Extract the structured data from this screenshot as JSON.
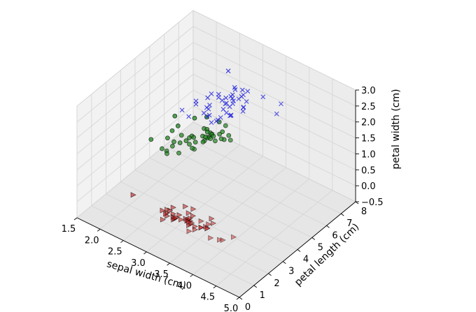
{
  "chart_data": {
    "type": "scatter3d",
    "title": "",
    "xlabel": "sepal width (cm)",
    "ylabel": "petal length (cm)",
    "zlabel": "petal width (cm)",
    "xlim": [
      1.5,
      5.0
    ],
    "ylim": [
      0,
      8
    ],
    "zlim": [
      -0.5,
      3.0
    ],
    "xticks": [
      "1.5",
      "2.0",
      "2.5",
      "3.0",
      "3.5",
      "4.0",
      "4.5",
      "5.0"
    ],
    "yticks": [
      "0",
      "1",
      "2",
      "3",
      "4",
      "5",
      "6",
      "7",
      "8"
    ],
    "zticks": [
      "−0.5",
      "0.0",
      "0.5",
      "1.0",
      "1.5",
      "2.0",
      "2.5",
      "3.0"
    ],
    "grid": true,
    "series": [
      {
        "marker": "triangle-right",
        "color": "#cc2222",
        "points": [
          [
            3.5,
            1.4,
            0.2
          ],
          [
            3.0,
            1.4,
            0.2
          ],
          [
            3.2,
            1.3,
            0.2
          ],
          [
            3.1,
            1.5,
            0.2
          ],
          [
            3.6,
            1.4,
            0.2
          ],
          [
            3.9,
            1.7,
            0.4
          ],
          [
            3.4,
            1.4,
            0.3
          ],
          [
            3.4,
            1.5,
            0.2
          ],
          [
            2.9,
            1.4,
            0.2
          ],
          [
            3.1,
            1.5,
            0.1
          ],
          [
            3.7,
            1.5,
            0.2
          ],
          [
            3.4,
            1.6,
            0.2
          ],
          [
            3.0,
            1.4,
            0.1
          ],
          [
            3.0,
            1.1,
            0.1
          ],
          [
            4.0,
            1.2,
            0.2
          ],
          [
            4.4,
            1.5,
            0.4
          ],
          [
            3.9,
            1.3,
            0.4
          ],
          [
            3.5,
            1.4,
            0.3
          ],
          [
            3.8,
            1.7,
            0.3
          ],
          [
            3.8,
            1.5,
            0.3
          ],
          [
            3.4,
            1.7,
            0.2
          ],
          [
            3.7,
            1.5,
            0.4
          ],
          [
            3.6,
            1.0,
            0.2
          ],
          [
            3.3,
            1.7,
            0.5
          ],
          [
            3.4,
            1.9,
            0.2
          ],
          [
            3.0,
            1.6,
            0.2
          ],
          [
            3.4,
            1.6,
            0.4
          ],
          [
            3.5,
            1.5,
            0.2
          ],
          [
            3.2,
            1.6,
            0.2
          ],
          [
            3.1,
            1.5,
            0.4
          ],
          [
            4.1,
            1.5,
            0.1
          ],
          [
            4.2,
            1.4,
            0.2
          ],
          [
            3.2,
            1.2,
            0.2
          ],
          [
            3.5,
            1.3,
            0.2
          ],
          [
            3.6,
            1.4,
            0.1
          ],
          [
            3.0,
            1.3,
            0.2
          ],
          [
            3.4,
            1.5,
            0.2
          ],
          [
            3.5,
            1.3,
            0.3
          ],
          [
            2.3,
            1.3,
            0.3
          ],
          [
            3.2,
            1.3,
            0.2
          ],
          [
            3.5,
            1.6,
            0.6
          ],
          [
            3.8,
            1.9,
            0.4
          ],
          [
            3.0,
            1.4,
            0.3
          ],
          [
            3.8,
            1.6,
            0.2
          ],
          [
            3.2,
            1.4,
            0.2
          ],
          [
            3.7,
            1.5,
            0.2
          ],
          [
            3.3,
            1.4,
            0.2
          ]
        ]
      },
      {
        "marker": "circle",
        "color": "#228822",
        "points": [
          [
            3.2,
            4.7,
            1.4
          ],
          [
            3.2,
            4.5,
            1.5
          ],
          [
            3.1,
            4.9,
            1.5
          ],
          [
            2.3,
            4.0,
            1.3
          ],
          [
            2.8,
            4.6,
            1.5
          ],
          [
            2.8,
            4.5,
            1.3
          ],
          [
            3.3,
            4.7,
            1.6
          ],
          [
            2.4,
            3.3,
            1.0
          ],
          [
            2.9,
            4.6,
            1.3
          ],
          [
            2.7,
            3.9,
            1.4
          ],
          [
            2.0,
            3.5,
            1.0
          ],
          [
            3.0,
            4.2,
            1.5
          ],
          [
            2.2,
            4.0,
            1.0
          ],
          [
            2.9,
            4.7,
            1.4
          ],
          [
            2.9,
            3.6,
            1.3
          ],
          [
            3.1,
            4.4,
            1.4
          ],
          [
            3.0,
            4.5,
            1.5
          ],
          [
            2.7,
            4.1,
            1.0
          ],
          [
            2.2,
            4.5,
            1.5
          ],
          [
            2.5,
            3.9,
            1.1
          ],
          [
            3.2,
            4.8,
            1.8
          ],
          [
            2.8,
            4.0,
            1.3
          ],
          [
            2.5,
            4.9,
            1.5
          ],
          [
            2.8,
            4.7,
            1.2
          ],
          [
            2.9,
            4.3,
            1.3
          ],
          [
            3.0,
            4.4,
            1.4
          ],
          [
            2.8,
            4.8,
            1.4
          ],
          [
            3.0,
            5.0,
            1.7
          ],
          [
            2.9,
            4.5,
            1.5
          ],
          [
            2.6,
            3.5,
            1.0
          ],
          [
            2.4,
            3.8,
            1.1
          ],
          [
            2.4,
            3.7,
            1.0
          ],
          [
            2.7,
            3.9,
            1.2
          ],
          [
            2.7,
            5.1,
            1.6
          ],
          [
            3.0,
            4.5,
            1.5
          ],
          [
            3.4,
            4.5,
            1.6
          ],
          [
            3.1,
            4.7,
            1.5
          ],
          [
            2.3,
            4.4,
            1.3
          ],
          [
            2.5,
            4.0,
            1.3
          ],
          [
            2.6,
            4.4,
            1.2
          ],
          [
            3.0,
            4.6,
            1.4
          ],
          [
            2.6,
            4.0,
            1.2
          ],
          [
            2.3,
            3.3,
            1.0
          ],
          [
            2.7,
            4.2,
            1.3
          ],
          [
            2.9,
            4.2,
            1.3
          ],
          [
            2.5,
            3.0,
            1.1
          ]
        ]
      },
      {
        "marker": "x",
        "color": "#2222dd",
        "points": [
          [
            3.3,
            6.0,
            2.5
          ],
          [
            2.7,
            5.1,
            1.9
          ],
          [
            3.0,
            5.9,
            2.1
          ],
          [
            2.9,
            5.6,
            1.8
          ],
          [
            3.0,
            5.8,
            2.2
          ],
          [
            3.0,
            6.6,
            2.1
          ],
          [
            2.5,
            4.5,
            1.7
          ],
          [
            2.9,
            6.3,
            1.8
          ],
          [
            2.5,
            5.8,
            1.8
          ],
          [
            3.6,
            6.1,
            2.5
          ],
          [
            3.2,
            5.1,
            2.0
          ],
          [
            2.7,
            5.3,
            1.9
          ],
          [
            3.0,
            5.5,
            2.1
          ],
          [
            2.5,
            5.0,
            2.0
          ],
          [
            2.8,
            5.1,
            2.4
          ],
          [
            3.2,
            5.3,
            2.3
          ],
          [
            3.0,
            5.5,
            1.8
          ],
          [
            3.8,
            6.7,
            2.2
          ],
          [
            2.6,
            6.9,
            2.3
          ],
          [
            2.2,
            5.0,
            1.5
          ],
          [
            3.2,
            5.7,
            2.3
          ],
          [
            2.8,
            4.9,
            2.0
          ],
          [
            2.8,
            6.7,
            2.0
          ],
          [
            2.7,
            4.9,
            1.8
          ],
          [
            3.3,
            5.7,
            2.1
          ],
          [
            3.2,
            6.0,
            1.8
          ],
          [
            2.8,
            4.8,
            1.8
          ],
          [
            3.0,
            4.9,
            1.8
          ],
          [
            2.8,
            5.6,
            2.1
          ],
          [
            3.0,
            5.8,
            1.6
          ],
          [
            2.8,
            6.1,
            1.9
          ],
          [
            3.8,
            6.4,
            2.0
          ],
          [
            2.8,
            5.6,
            2.2
          ],
          [
            2.8,
            5.1,
            1.5
          ],
          [
            2.6,
            5.6,
            1.4
          ],
          [
            3.0,
            6.1,
            2.3
          ],
          [
            3.4,
            5.6,
            2.4
          ],
          [
            3.1,
            5.5,
            1.8
          ],
          [
            3.0,
            4.8,
            1.8
          ],
          [
            3.1,
            5.4,
            2.1
          ],
          [
            3.1,
            5.6,
            2.4
          ],
          [
            3.1,
            5.1,
            2.3
          ],
          [
            3.2,
            5.9,
            2.3
          ],
          [
            3.3,
            5.7,
            2.5
          ],
          [
            3.0,
            5.2,
            2.3
          ],
          [
            2.5,
            5.0,
            1.9
          ],
          [
            3.4,
            5.4,
            2.3
          ],
          [
            3.0,
            5.1,
            1.8
          ]
        ]
      }
    ]
  }
}
